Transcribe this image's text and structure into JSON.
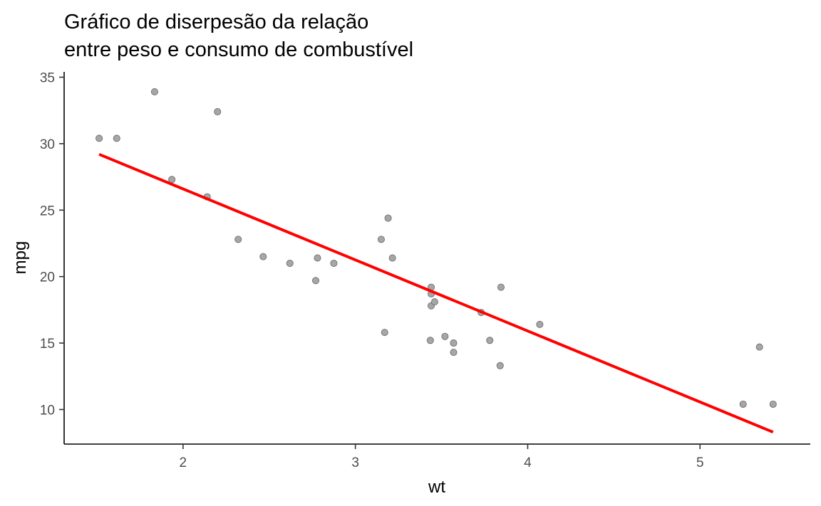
{
  "chart_data": {
    "type": "scatter",
    "title": [
      "Gráfico de diserpesão da relação",
      "entre peso e consumo de combustível"
    ],
    "xlabel": "wt",
    "ylabel": "mpg",
    "xlim": [
      1.31,
      5.64
    ],
    "ylim": [
      7.4,
      35.4
    ],
    "xticks": [
      2,
      3,
      4,
      5
    ],
    "yticks": [
      10,
      15,
      20,
      25,
      30,
      35
    ],
    "grid": false,
    "point_color": "#a6a6a6",
    "point_stroke": "#666666",
    "line_color": "#ff0000",
    "points": [
      {
        "x": 1.513,
        "y": 30.4
      },
      {
        "x": 1.615,
        "y": 30.4
      },
      {
        "x": 1.835,
        "y": 33.9
      },
      {
        "x": 1.935,
        "y": 27.3
      },
      {
        "x": 2.14,
        "y": 26.0
      },
      {
        "x": 2.2,
        "y": 32.4
      },
      {
        "x": 2.32,
        "y": 22.8
      },
      {
        "x": 2.465,
        "y": 21.5
      },
      {
        "x": 2.62,
        "y": 21.0
      },
      {
        "x": 2.77,
        "y": 19.7
      },
      {
        "x": 2.78,
        "y": 21.4
      },
      {
        "x": 2.875,
        "y": 21.0
      },
      {
        "x": 3.15,
        "y": 22.8
      },
      {
        "x": 3.17,
        "y": 15.8
      },
      {
        "x": 3.19,
        "y": 24.4
      },
      {
        "x": 3.215,
        "y": 21.4
      },
      {
        "x": 3.435,
        "y": 15.2
      },
      {
        "x": 3.44,
        "y": 17.8
      },
      {
        "x": 3.44,
        "y": 18.7
      },
      {
        "x": 3.44,
        "y": 19.2
      },
      {
        "x": 3.46,
        "y": 18.1
      },
      {
        "x": 3.52,
        "y": 15.5
      },
      {
        "x": 3.57,
        "y": 15.0
      },
      {
        "x": 3.57,
        "y": 14.3
      },
      {
        "x": 3.73,
        "y": 17.3
      },
      {
        "x": 3.78,
        "y": 15.2
      },
      {
        "x": 3.84,
        "y": 13.3
      },
      {
        "x": 3.845,
        "y": 19.2
      },
      {
        "x": 4.07,
        "y": 16.4
      },
      {
        "x": 5.25,
        "y": 10.4
      },
      {
        "x": 5.345,
        "y": 14.7
      },
      {
        "x": 5.424,
        "y": 10.4
      }
    ],
    "trend_line": {
      "x": [
        1.513,
        5.424
      ],
      "y": [
        29.2,
        8.3
      ]
    }
  }
}
